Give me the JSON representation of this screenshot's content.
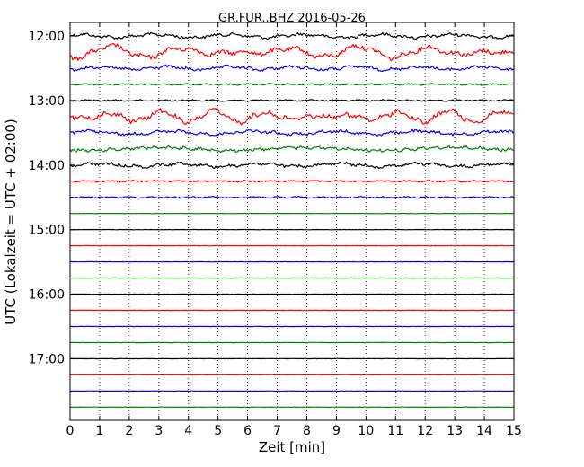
{
  "chart_data": {
    "type": "line",
    "title": "GR.FUR..BHZ 2016-05-26",
    "xlabel": "Zeit  [min]",
    "ylabel": "UTC (Lokalzeit = UTC + 02:00)",
    "xlim": [
      0,
      15
    ],
    "x_ticks": [
      "0",
      "1",
      "2",
      "3",
      "4",
      "5",
      "6",
      "7",
      "8",
      "9",
      "10",
      "11",
      "12",
      "13",
      "14",
      "15"
    ],
    "y_tick_labels": [
      "12:00",
      "13:00",
      "14:00",
      "15:00",
      "16:00",
      "17:00"
    ],
    "trace_interval_minutes": 15,
    "grid": "vertical dotted",
    "trace_colors": [
      "#000000",
      "#ff0000",
      "#0000ff",
      "#008000"
    ],
    "trace_starts": [
      "12:00",
      "12:15",
      "12:30",
      "12:45",
      "13:00",
      "13:15",
      "13:30",
      "13:45",
      "14:00",
      "14:15",
      "14:30",
      "14:45",
      "15:00",
      "15:15",
      "15:30",
      "15:45",
      "16:00",
      "16:15",
      "16:30",
      "16:45",
      "17:00",
      "17:15",
      "17:30",
      "17:45"
    ],
    "trace_activity": [
      {
        "start": "12:00",
        "level": "moderate"
      },
      {
        "start": "12:15",
        "level": "strong"
      },
      {
        "start": "12:30",
        "level": "moderate"
      },
      {
        "start": "12:45",
        "level": "low"
      },
      {
        "start": "13:00",
        "level": "low"
      },
      {
        "start": "13:15",
        "level": "strong"
      },
      {
        "start": "13:30",
        "level": "moderate"
      },
      {
        "start": "13:45",
        "level": "moderate"
      },
      {
        "start": "14:00",
        "level": "moderate"
      },
      {
        "start": "14:15",
        "level": "low"
      },
      {
        "start": "14:30",
        "level": "low"
      },
      {
        "start": "14:45",
        "level": "quiet"
      },
      {
        "start": "15:00",
        "level": "quiet"
      },
      {
        "start": "15:15",
        "level": "quiet"
      },
      {
        "start": "15:30",
        "level": "quiet"
      },
      {
        "start": "15:45",
        "level": "quiet"
      },
      {
        "start": "16:00",
        "level": "quiet"
      },
      {
        "start": "16:15",
        "level": "quiet"
      },
      {
        "start": "16:30",
        "level": "quiet"
      },
      {
        "start": "16:45",
        "level": "quiet"
      },
      {
        "start": "17:00",
        "level": "quiet"
      },
      {
        "start": "17:15",
        "level": "quiet"
      },
      {
        "start": "17:30",
        "level": "quiet"
      },
      {
        "start": "17:45",
        "level": "quiet"
      }
    ]
  }
}
